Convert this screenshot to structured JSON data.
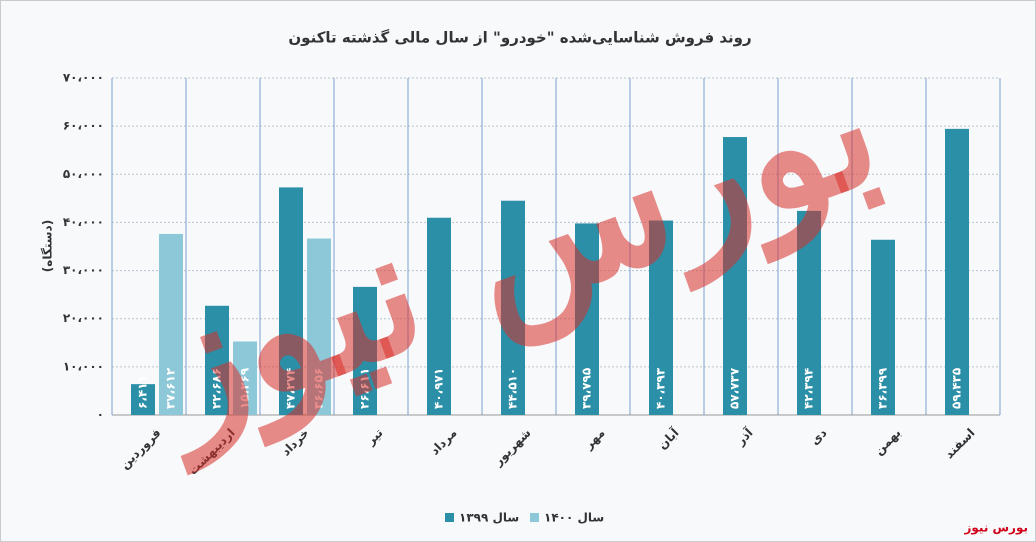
{
  "chart_data": {
    "type": "bar",
    "title": "روند فروش شناسایی‌شده \"خودرو\" از سال مالی گذشته تاکنون",
    "y_label": "(دستگاه)",
    "watermark": "بورس نیوز",
    "source": "بورس نیوز",
    "categories": [
      "فروردین",
      "اردیبهشت",
      "خرداد",
      "تیر",
      "مرداد",
      "شهریور",
      "مهر",
      "آبان",
      "آذر",
      "دی",
      "بهمن",
      "اسفند"
    ],
    "series": [
      {
        "name": "سال ۱۳۹۹",
        "color": "#2b8fa8",
        "values": [
          6411,
          22686,
          47274,
          26611,
          40971,
          44510,
          39795,
          40393,
          57737,
          42394,
          36399,
          59435
        ],
        "value_labels": [
          "۶،۴۱۱",
          "۲۲،۶۸۶",
          "۴۷،۲۷۴",
          "۲۶،۶۱۱",
          "۴۰،۹۷۱",
          "۴۴،۵۱۰",
          "۳۹،۷۹۵",
          "۴۰،۳۹۳",
          "۵۷،۷۳۷",
          "۴۲،۳۹۴",
          "۳۶،۳۹۹",
          "۵۹،۴۳۵"
        ]
      },
      {
        "name": "سال ۱۴۰۰",
        "color": "#8cc8d8",
        "values": [
          37612,
          15269,
          36656,
          null,
          null,
          null,
          null,
          null,
          null,
          null,
          null,
          null
        ],
        "value_labels": [
          "۳۷،۶۱۲",
          "۱۵،۲۶۹",
          "۳۶،۶۵۶",
          null,
          null,
          null,
          null,
          null,
          null,
          null,
          null,
          null
        ]
      }
    ],
    "ylim": [
      0,
      70000
    ],
    "yticks": [
      {
        "value": 0,
        "label": "۰"
      },
      {
        "value": 10000,
        "label": "۱۰،۰۰۰"
      },
      {
        "value": 20000,
        "label": "۲۰،۰۰۰"
      },
      {
        "value": 30000,
        "label": "۳۰،۰۰۰"
      },
      {
        "value": 40000,
        "label": "۴۰،۰۰۰"
      },
      {
        "value": 50000,
        "label": "۵۰،۰۰۰"
      },
      {
        "value": 60000,
        "label": "۶۰،۰۰۰"
      },
      {
        "value": 70000,
        "label": "۷۰،۰۰۰"
      }
    ],
    "grid": true
  }
}
